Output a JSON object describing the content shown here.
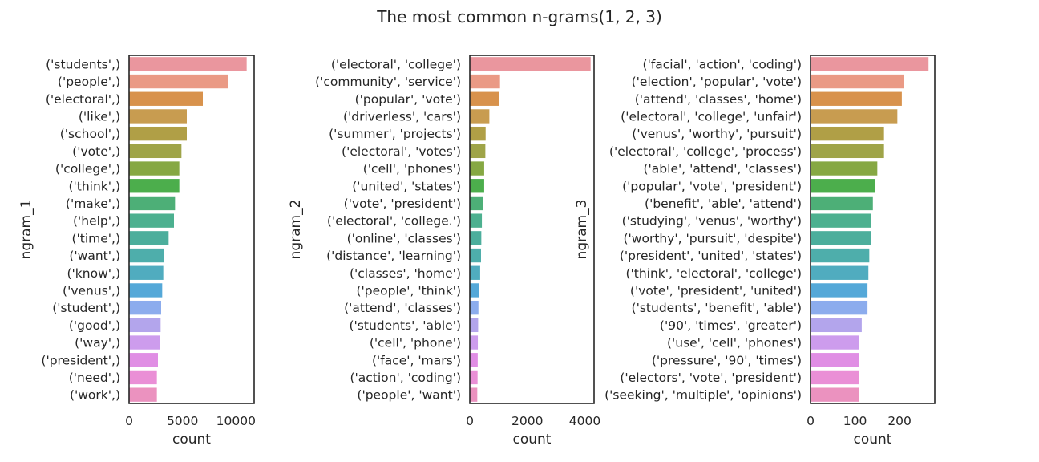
{
  "suptitle": "The most common n-grams(1, 2, 3)",
  "palette": [
    "#ea969e",
    "#ea9a85",
    "#d8924c",
    "#c89c50",
    "#b09f46",
    "#9fa448",
    "#86a843",
    "#4cae4c",
    "#4daf77",
    "#4cb08f",
    "#4cae9c",
    "#4eaeab",
    "#50acbf",
    "#54a8d8",
    "#8caced",
    "#b3a5ec",
    "#cd9ced",
    "#e08ee4",
    "#ea8fd6",
    "#eb92bf"
  ],
  "chart_data": [
    {
      "type": "bar",
      "orientation": "horizontal",
      "ylabel": "ngram_1",
      "xlabel": "count",
      "xlim": [
        0,
        11700
      ],
      "xticks": [
        0,
        5000,
        10000
      ],
      "xtick_labels": [
        "0",
        "5000",
        "10000"
      ],
      "categories": [
        "('students',)",
        "('people',)",
        "('electoral',)",
        "('like',)",
        "('school',)",
        "('vote',)",
        "('college',)",
        "('think',)",
        "('make',)",
        "('help',)",
        "('time',)",
        "('want',)",
        "('know',)",
        "('venus',)",
        "('student',)",
        "('good',)",
        "('way',)",
        "('president',)",
        "('need',)",
        "('work',)"
      ],
      "values": [
        11000,
        9300,
        6900,
        5400,
        5400,
        4900,
        4700,
        4700,
        4300,
        4200,
        3700,
        3300,
        3200,
        3100,
        3000,
        2950,
        2900,
        2700,
        2600,
        2600
      ]
    },
    {
      "type": "bar",
      "orientation": "horizontal",
      "ylabel": "ngram_2",
      "xlabel": "count",
      "xlim": [
        0,
        4320
      ],
      "xticks": [
        0,
        2000,
        4000
      ],
      "xtick_labels": [
        "0",
        "2000",
        "4000"
      ],
      "categories": [
        "('electoral', 'college')",
        "('community', 'service')",
        "('popular', 'vote')",
        "('driverless', 'cars')",
        "('summer', 'projects')",
        "('electoral', 'votes')",
        "('cell', 'phones')",
        "('united', 'states')",
        "('vote', 'president')",
        "('electoral', 'college.')",
        "('online', 'classes')",
        "('distance', 'learning')",
        "('classes', 'home')",
        "('people', 'think')",
        "('attend', 'classes')",
        "('students', 'able')",
        "('cell', 'phone')",
        "('face', 'mars')",
        "('action', 'coding')",
        "('people', 'want')"
      ],
      "values": [
        4200,
        1050,
        1030,
        680,
        550,
        540,
        500,
        500,
        470,
        420,
        400,
        390,
        360,
        330,
        300,
        290,
        280,
        275,
        270,
        260
      ]
    },
    {
      "type": "bar",
      "orientation": "horizontal",
      "ylabel": "ngram_3",
      "xlabel": "count",
      "xlim": [
        0,
        279
      ],
      "xticks": [
        0,
        100,
        200
      ],
      "xtick_labels": [
        "0",
        "100",
        "200"
      ],
      "categories": [
        "('facial', 'action', 'coding')",
        "('election', 'popular', 'vote')",
        "('attend', 'classes', 'home')",
        "('electoral', 'college', 'unfair')",
        "('venus', 'worthy', 'pursuit')",
        "('electoral', 'college', 'process')",
        "('able', 'attend', 'classes')",
        "('popular', 'vote', 'president')",
        "('benefit', 'able', 'attend')",
        "('studying', 'venus', 'worthy')",
        "('worthy', 'pursuit', 'despite')",
        "('president', 'united', 'states')",
        "('think', 'electoral', 'college')",
        "('vote', 'president', 'united')",
        "('students', 'benefit', 'able')",
        "('90', 'times', 'greater')",
        "('use', 'cell', 'phones')",
        "('pressure', '90', 'times')",
        "('electors', 'vote', 'president')",
        "('seeking', 'multiple', 'opinions')"
      ],
      "values": [
        265,
        210,
        205,
        195,
        165,
        165,
        150,
        145,
        140,
        135,
        135,
        132,
        130,
        128,
        128,
        115,
        108,
        108,
        108,
        108
      ]
    }
  ]
}
